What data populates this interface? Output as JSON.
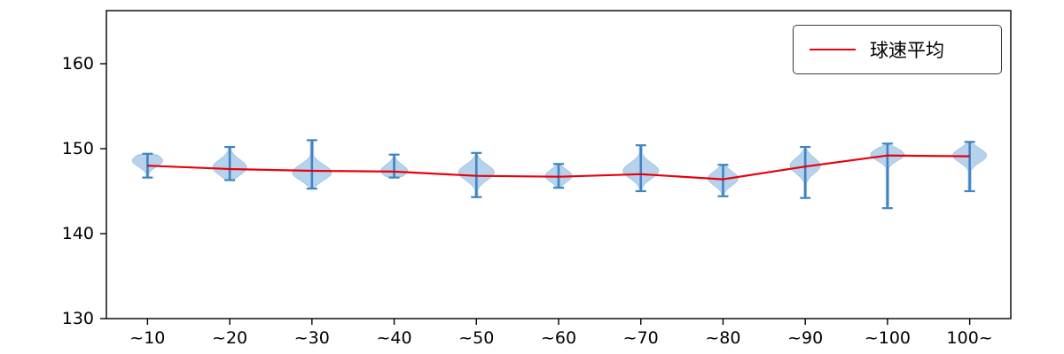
{
  "chart_data": {
    "type": "violin",
    "title": "",
    "xlabel": "",
    "ylabel": "",
    "categories": [
      "~10",
      "~20",
      "~30",
      "~40",
      "~50",
      "~60",
      "~70",
      "~80",
      "~90",
      "~100",
      "100~"
    ],
    "series": [
      {
        "name": "球速平均",
        "type": "line",
        "color": "#e8000b",
        "values": [
          148.0,
          147.6,
          147.4,
          147.3,
          146.8,
          146.7,
          147.0,
          146.4,
          147.9,
          149.2,
          149.1
        ]
      }
    ],
    "violins": [
      {
        "category": "~10",
        "min": 146.6,
        "max": 149.4,
        "mode": 148.6,
        "bw": 0.7,
        "hw": 17
      },
      {
        "category": "~20",
        "min": 146.3,
        "max": 150.2,
        "mode": 147.8,
        "bw": 0.9,
        "hw": 19
      },
      {
        "category": "~30",
        "min": 145.3,
        "max": 151.0,
        "mode": 147.2,
        "bw": 0.9,
        "hw": 22
      },
      {
        "category": "~40",
        "min": 146.6,
        "max": 149.3,
        "mode": 147.4,
        "bw": 0.7,
        "hw": 15
      },
      {
        "category": "~50",
        "min": 144.3,
        "max": 149.5,
        "mode": 147.2,
        "bw": 0.9,
        "hw": 20
      },
      {
        "category": "~60",
        "min": 145.4,
        "max": 148.2,
        "mode": 146.8,
        "bw": 0.7,
        "hw": 15
      },
      {
        "category": "~70",
        "min": 145.0,
        "max": 150.4,
        "mode": 147.4,
        "bw": 0.9,
        "hw": 20
      },
      {
        "category": "~80",
        "min": 144.4,
        "max": 148.1,
        "mode": 146.5,
        "bw": 0.8,
        "hw": 17
      },
      {
        "category": "~90",
        "min": 144.2,
        "max": 150.2,
        "mode": 148.0,
        "bw": 0.9,
        "hw": 17
      },
      {
        "category": "~100",
        "min": 143.0,
        "max": 150.6,
        "mode": 149.3,
        "bw": 0.7,
        "hw": 19
      },
      {
        "category": "100~",
        "min": 145.0,
        "max": 150.8,
        "mode": 149.2,
        "bw": 0.8,
        "hw": 19
      }
    ],
    "ylim": [
      130,
      166.25
    ],
    "yticks": [
      130,
      140,
      150,
      160
    ],
    "grid": false,
    "legend": {
      "label": "球速平均",
      "position": "upper right"
    },
    "colors": {
      "violin_fill": "#b7d2ec",
      "violin_edge": "#a4c6e5",
      "stem": "#3f83c1",
      "mean_line": "#e8000b",
      "axis": "#000000",
      "background": "#ffffff"
    }
  }
}
